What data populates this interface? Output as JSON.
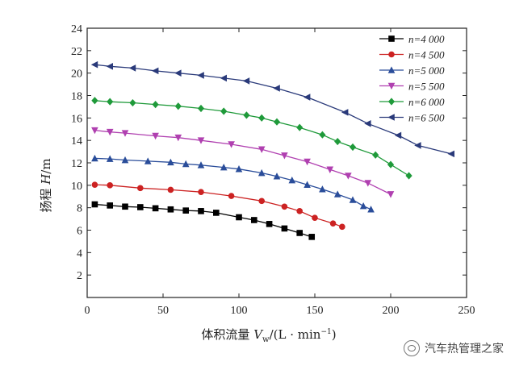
{
  "chart_data": {
    "type": "line",
    "ylabel_parts": [
      "扬程 ",
      "H",
      "/m"
    ],
    "xlabel_parts": [
      "体积流量 ",
      "V",
      "w",
      "/(L · min",
      "−1",
      ")"
    ],
    "xlim": [
      0,
      250
    ],
    "ylim": [
      0,
      24
    ],
    "xticks": [
      0,
      50,
      100,
      150,
      200,
      250
    ],
    "yticks": [
      2,
      4,
      6,
      8,
      10,
      12,
      14,
      16,
      18,
      20,
      22,
      24
    ],
    "grid": false,
    "legend_position": "top-right",
    "series": [
      {
        "name": "n=4 000",
        "color": "#000000",
        "marker": "square",
        "points": [
          [
            5,
            8.3
          ],
          [
            15,
            8.2
          ],
          [
            25,
            8.1
          ],
          [
            35,
            8.05
          ],
          [
            45,
            7.95
          ],
          [
            55,
            7.85
          ],
          [
            65,
            7.75
          ],
          [
            75,
            7.7
          ],
          [
            85,
            7.55
          ],
          [
            100,
            7.15
          ],
          [
            110,
            6.9
          ],
          [
            120,
            6.55
          ],
          [
            130,
            6.15
          ],
          [
            140,
            5.75
          ],
          [
            148,
            5.4
          ]
        ]
      },
      {
        "name": "n=4 500",
        "color": "#cc2222",
        "marker": "circle",
        "points": [
          [
            5,
            10.05
          ],
          [
            15,
            10.0
          ],
          [
            35,
            9.75
          ],
          [
            55,
            9.6
          ],
          [
            75,
            9.4
          ],
          [
            95,
            9.05
          ],
          [
            115,
            8.6
          ],
          [
            130,
            8.1
          ],
          [
            140,
            7.7
          ],
          [
            150,
            7.1
          ],
          [
            162,
            6.6
          ],
          [
            168,
            6.3
          ]
        ]
      },
      {
        "name": "n=5 000",
        "color": "#2a4d9a",
        "marker": "triangle-up",
        "points": [
          [
            5,
            12.4
          ],
          [
            15,
            12.35
          ],
          [
            25,
            12.25
          ],
          [
            40,
            12.15
          ],
          [
            55,
            12.05
          ],
          [
            65,
            11.9
          ],
          [
            75,
            11.8
          ],
          [
            90,
            11.6
          ],
          [
            100,
            11.45
          ],
          [
            115,
            11.1
          ],
          [
            125,
            10.8
          ],
          [
            135,
            10.45
          ],
          [
            145,
            10.05
          ],
          [
            155,
            9.65
          ],
          [
            165,
            9.2
          ],
          [
            175,
            8.7
          ],
          [
            182,
            8.15
          ],
          [
            187,
            7.85
          ]
        ]
      },
      {
        "name": "n=5 500",
        "color": "#b040b0",
        "marker": "triangle-down",
        "points": [
          [
            5,
            14.9
          ],
          [
            15,
            14.75
          ],
          [
            25,
            14.65
          ],
          [
            45,
            14.4
          ],
          [
            60,
            14.25
          ],
          [
            75,
            14.0
          ],
          [
            95,
            13.65
          ],
          [
            115,
            13.2
          ],
          [
            130,
            12.65
          ],
          [
            145,
            12.1
          ],
          [
            160,
            11.4
          ],
          [
            172,
            10.85
          ],
          [
            185,
            10.2
          ],
          [
            200,
            9.2
          ]
        ]
      },
      {
        "name": "n=6 000",
        "color": "#1f9a3a",
        "marker": "diamond",
        "points": [
          [
            5,
            17.55
          ],
          [
            15,
            17.45
          ],
          [
            30,
            17.35
          ],
          [
            45,
            17.2
          ],
          [
            60,
            17.05
          ],
          [
            75,
            16.85
          ],
          [
            90,
            16.6
          ],
          [
            105,
            16.25
          ],
          [
            115,
            16.0
          ],
          [
            125,
            15.65
          ],
          [
            140,
            15.15
          ],
          [
            155,
            14.5
          ],
          [
            165,
            13.9
          ],
          [
            175,
            13.4
          ],
          [
            190,
            12.7
          ],
          [
            200,
            11.85
          ],
          [
            212,
            10.85
          ]
        ]
      },
      {
        "name": "n=6 500",
        "color": "#2a3a7a",
        "marker": "triangle-left",
        "points": [
          [
            5,
            20.75
          ],
          [
            15,
            20.6
          ],
          [
            30,
            20.45
          ],
          [
            45,
            20.2
          ],
          [
            60,
            20.0
          ],
          [
            75,
            19.8
          ],
          [
            90,
            19.55
          ],
          [
            105,
            19.3
          ],
          [
            125,
            18.65
          ],
          [
            145,
            17.85
          ],
          [
            170,
            16.5
          ],
          [
            185,
            15.5
          ],
          [
            205,
            14.45
          ],
          [
            218,
            13.55
          ],
          [
            240,
            12.8
          ]
        ]
      }
    ]
  },
  "watermark": {
    "text": "汽车热管理之家"
  }
}
